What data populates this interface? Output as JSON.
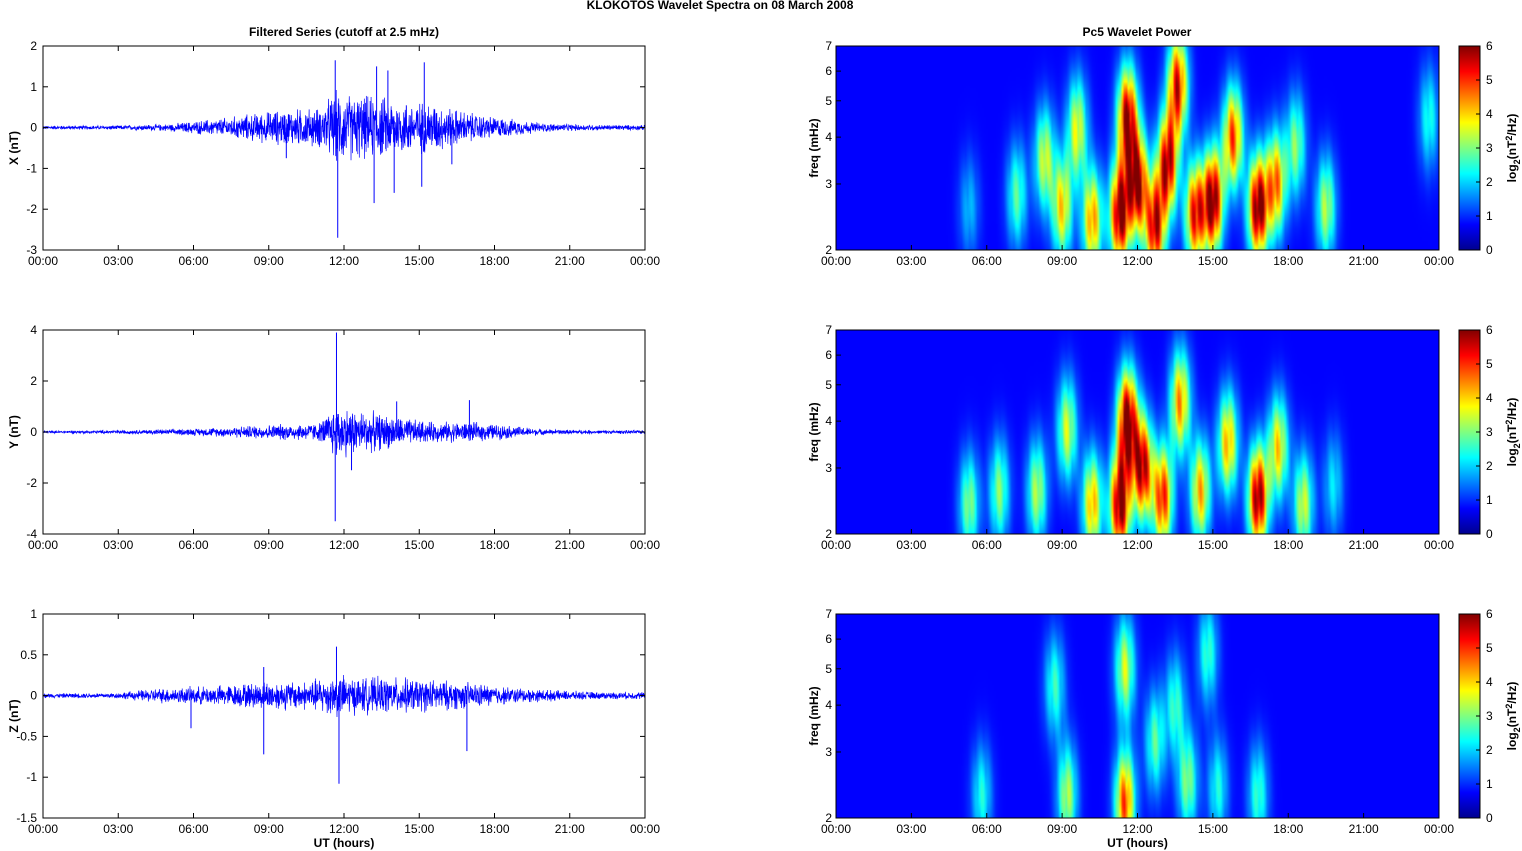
{
  "figure": {
    "suptitle": "KLOKOTOS Wavelet Spectra on 08 March     2008",
    "left_title": "Filtered Series (cutoff at 2.5 mHz)",
    "right_title": "Pc5 Wavelet Power"
  },
  "colors": {
    "series_line": "#0000ff",
    "colormap": "jet",
    "background": "#ffffff"
  },
  "chart_data": [
    {
      "type": "line",
      "name": "x-series",
      "title": "Filtered Series (cutoff at 2.5 mHz)",
      "xlabel": "",
      "ylabel": "X (nT)",
      "x_ticks": [
        "00:00",
        "03:00",
        "06:00",
        "09:00",
        "12:00",
        "15:00",
        "18:00",
        "21:00",
        "00:00"
      ],
      "xlim_hours": [
        0,
        24
      ],
      "ylim": [
        -3,
        2
      ],
      "y_ticks": [
        2,
        1,
        0,
        -1,
        -2,
        -3
      ],
      "grid": false,
      "envelope": {
        "hours": [
          0,
          3,
          5,
          7,
          8.5,
          9.5,
          11,
          11.7,
          12.5,
          13.5,
          14.5,
          15.5,
          16.5,
          17.5,
          18.5,
          20,
          22,
          24
        ],
        "amplitude": [
          0.05,
          0.06,
          0.1,
          0.25,
          0.4,
          0.5,
          0.55,
          1.0,
          0.9,
          0.85,
          0.75,
          0.7,
          0.5,
          0.35,
          0.25,
          0.12,
          0.08,
          0.07
        ]
      },
      "spikes": [
        {
          "hour": 11.75,
          "value": -2.7
        },
        {
          "hour": 11.65,
          "value": 1.65
        },
        {
          "hour": 13.3,
          "value": 1.5
        },
        {
          "hour": 13.2,
          "value": -1.85
        },
        {
          "hour": 13.75,
          "value": 1.4
        },
        {
          "hour": 14.0,
          "value": -1.6
        },
        {
          "hour": 15.2,
          "value": 1.6
        },
        {
          "hour": 15.1,
          "value": -1.45
        },
        {
          "hour": 9.7,
          "value": -0.75
        },
        {
          "hour": 16.3,
          "value": -0.9
        }
      ]
    },
    {
      "type": "line",
      "name": "y-series",
      "xlabel": "",
      "ylabel": "Y (nT)",
      "x_ticks": [
        "00:00",
        "03:00",
        "06:00",
        "09:00",
        "12:00",
        "15:00",
        "18:00",
        "21:00",
        "00:00"
      ],
      "xlim_hours": [
        0,
        24
      ],
      "ylim": [
        -4,
        4
      ],
      "y_ticks": [
        4,
        2,
        0,
        -2,
        -4
      ],
      "grid": false,
      "envelope": {
        "hours": [
          0,
          3,
          5,
          7,
          8.5,
          9.5,
          11,
          11.7,
          12.5,
          13.5,
          14.5,
          15.5,
          16.5,
          17.5,
          18.5,
          20,
          22,
          24
        ],
        "amplitude": [
          0.05,
          0.08,
          0.12,
          0.2,
          0.3,
          0.35,
          0.4,
          1.2,
          1.0,
          0.8,
          0.6,
          0.45,
          0.45,
          0.4,
          0.3,
          0.12,
          0.08,
          0.08
        ]
      },
      "spikes": [
        {
          "hour": 11.7,
          "value": 3.9
        },
        {
          "hour": 11.65,
          "value": -3.5
        },
        {
          "hour": 12.3,
          "value": -1.5
        },
        {
          "hour": 14.1,
          "value": 1.2
        },
        {
          "hour": 17.0,
          "value": 1.25
        }
      ]
    },
    {
      "type": "line",
      "name": "z-series",
      "xlabel": "UT (hours)",
      "ylabel": "Z (nT)",
      "x_ticks": [
        "00:00",
        "03:00",
        "06:00",
        "09:00",
        "12:00",
        "15:00",
        "18:00",
        "21:00",
        "00:00"
      ],
      "xlim_hours": [
        0,
        24
      ],
      "ylim": [
        -1.5,
        1
      ],
      "y_ticks": [
        1,
        0.5,
        0,
        -0.5,
        -1,
        -1.5
      ],
      "grid": false,
      "envelope": {
        "hours": [
          0,
          3,
          4.5,
          6,
          7.5,
          9,
          10.5,
          11.7,
          12.5,
          14,
          15.5,
          17,
          18.5,
          20,
          22,
          24
        ],
        "amplitude": [
          0.03,
          0.04,
          0.1,
          0.12,
          0.15,
          0.2,
          0.2,
          0.3,
          0.25,
          0.25,
          0.22,
          0.18,
          0.12,
          0.08,
          0.05,
          0.05
        ]
      },
      "spikes": [
        {
          "hour": 11.8,
          "value": -1.08
        },
        {
          "hour": 11.7,
          "value": 0.6
        },
        {
          "hour": 8.8,
          "value": -0.72
        },
        {
          "hour": 5.9,
          "value": -0.4
        },
        {
          "hour": 16.9,
          "value": -0.68
        },
        {
          "hour": 8.8,
          "value": 0.35
        }
      ]
    },
    {
      "type": "heatmap",
      "name": "x-wavelet",
      "title": "Pc5 Wavelet Power",
      "xlabel": "",
      "ylabel": "freq (mHz)",
      "x_ticks": [
        "00:00",
        "03:00",
        "06:00",
        "09:00",
        "12:00",
        "15:00",
        "18:00",
        "21:00",
        "00:00"
      ],
      "y_ticks": [
        7,
        6,
        5,
        4,
        3,
        2
      ],
      "freq_range_mHz": [
        2,
        7
      ],
      "y_scale": "log",
      "colorbar": {
        "label": "log2(nT²/Hz)",
        "label_main": "log",
        "label_sub": "2",
        "label_rest": "(nT",
        "label_sup": "2",
        "label_end": "/Hz)",
        "ticks": [
          0,
          1,
          2,
          3,
          4,
          5,
          6
        ],
        "range": [
          0,
          6
        ]
      },
      "blobs": [
        {
          "hour": 5.3,
          "freq_mHz": 2.6,
          "power": 1.2
        },
        {
          "hour": 7.2,
          "freq_mHz": 2.8,
          "power": 2.2
        },
        {
          "hour": 8.3,
          "freq_mHz": 3.5,
          "power": 3.0
        },
        {
          "hour": 9.0,
          "freq_mHz": 2.6,
          "power": 3.5
        },
        {
          "hour": 9.6,
          "freq_mHz": 4.2,
          "power": 3.2
        },
        {
          "hour": 10.2,
          "freq_mHz": 2.4,
          "power": 4.0
        },
        {
          "hour": 11.3,
          "freq_mHz": 2.5,
          "power": 6.0
        },
        {
          "hour": 11.6,
          "freq_mHz": 4.5,
          "power": 5.5
        },
        {
          "hour": 12.0,
          "freq_mHz": 3.0,
          "power": 5.6
        },
        {
          "hour": 12.7,
          "freq_mHz": 2.3,
          "power": 5.2
        },
        {
          "hour": 13.2,
          "freq_mHz": 3.4,
          "power": 5.4
        },
        {
          "hour": 13.6,
          "freq_mHz": 5.5,
          "power": 5.0
        },
        {
          "hour": 14.3,
          "freq_mHz": 2.5,
          "power": 5.0
        },
        {
          "hour": 15.0,
          "freq_mHz": 2.7,
          "power": 6.0
        },
        {
          "hour": 15.8,
          "freq_mHz": 4.0,
          "power": 4.5
        },
        {
          "hour": 16.8,
          "freq_mHz": 2.6,
          "power": 6.0
        },
        {
          "hour": 17.5,
          "freq_mHz": 3.0,
          "power": 4.2
        },
        {
          "hour": 18.3,
          "freq_mHz": 3.8,
          "power": 2.5
        },
        {
          "hour": 19.5,
          "freq_mHz": 2.6,
          "power": 2.8
        },
        {
          "hour": 23.6,
          "freq_mHz": 4.5,
          "power": 1.8
        }
      ]
    },
    {
      "type": "heatmap",
      "name": "y-wavelet",
      "xlabel": "",
      "ylabel": "freq (mHz)",
      "x_ticks": [
        "00:00",
        "03:00",
        "06:00",
        "09:00",
        "12:00",
        "15:00",
        "18:00",
        "21:00",
        "00:00"
      ],
      "y_ticks": [
        7,
        6,
        5,
        4,
        3,
        2
      ],
      "freq_range_mHz": [
        2,
        7
      ],
      "y_scale": "log",
      "colorbar": {
        "label": "log2(nT²/Hz)",
        "label_main": "log",
        "label_sub": "2",
        "label_rest": "(nT",
        "label_sup": "2",
        "label_end": "/Hz)",
        "ticks": [
          0,
          1,
          2,
          3,
          4,
          5,
          6
        ],
        "range": [
          0,
          6
        ]
      },
      "blobs": [
        {
          "hour": 5.3,
          "freq_mHz": 2.4,
          "power": 2.5
        },
        {
          "hour": 6.5,
          "freq_mHz": 2.6,
          "power": 2.5
        },
        {
          "hour": 8.0,
          "freq_mHz": 2.6,
          "power": 2.8
        },
        {
          "hour": 9.2,
          "freq_mHz": 3.8,
          "power": 3.0
        },
        {
          "hour": 10.2,
          "freq_mHz": 2.4,
          "power": 3.8
        },
        {
          "hour": 11.3,
          "freq_mHz": 2.4,
          "power": 6.0
        },
        {
          "hour": 11.6,
          "freq_mHz": 4.0,
          "power": 6.0
        },
        {
          "hour": 12.2,
          "freq_mHz": 3.0,
          "power": 5.5
        },
        {
          "hour": 13.0,
          "freq_mHz": 2.5,
          "power": 4.8
        },
        {
          "hour": 13.7,
          "freq_mHz": 4.5,
          "power": 4.0
        },
        {
          "hour": 14.5,
          "freq_mHz": 2.6,
          "power": 3.8
        },
        {
          "hour": 15.6,
          "freq_mHz": 3.5,
          "power": 3.8
        },
        {
          "hour": 16.8,
          "freq_mHz": 2.5,
          "power": 5.8
        },
        {
          "hour": 17.6,
          "freq_mHz": 3.4,
          "power": 3.5
        },
        {
          "hour": 18.6,
          "freq_mHz": 2.4,
          "power": 3.0
        },
        {
          "hour": 19.8,
          "freq_mHz": 2.7,
          "power": 1.5
        }
      ]
    },
    {
      "type": "heatmap",
      "name": "z-wavelet",
      "xlabel": "UT (hours)",
      "ylabel": "freq (mHz)",
      "x_ticks": [
        "00:00",
        "03:00",
        "06:00",
        "09:00",
        "12:00",
        "15:00",
        "18:00",
        "21:00",
        "00:00"
      ],
      "y_ticks": [
        7,
        6,
        5,
        4,
        3,
        2
      ],
      "freq_range_mHz": [
        2,
        7
      ],
      "y_scale": "log",
      "colorbar": {
        "label": "log2(nT²/Hz)",
        "label_main": "log",
        "label_sub": "2",
        "label_rest": "(nT",
        "label_sup": "2",
        "label_end": "/Hz)",
        "ticks": [
          0,
          1,
          2,
          3,
          4,
          5,
          6
        ],
        "range": [
          0,
          6
        ]
      },
      "blobs": [
        {
          "hour": 5.8,
          "freq_mHz": 2.3,
          "power": 1.8
        },
        {
          "hour": 8.7,
          "freq_mHz": 4.5,
          "power": 2.0
        },
        {
          "hour": 9.2,
          "freq_mHz": 2.3,
          "power": 2.8
        },
        {
          "hour": 11.5,
          "freq_mHz": 2.2,
          "power": 4.5
        },
        {
          "hour": 11.5,
          "freq_mHz": 5.0,
          "power": 3.0
        },
        {
          "hour": 12.7,
          "freq_mHz": 3.2,
          "power": 2.2
        },
        {
          "hour": 13.5,
          "freq_mHz": 4.0,
          "power": 2.0
        },
        {
          "hour": 14.0,
          "freq_mHz": 2.5,
          "power": 2.5
        },
        {
          "hour": 15.2,
          "freq_mHz": 2.4,
          "power": 1.8
        },
        {
          "hour": 16.8,
          "freq_mHz": 2.3,
          "power": 2.0
        },
        {
          "hour": 14.8,
          "freq_mHz": 5.5,
          "power": 2.0
        }
      ]
    }
  ]
}
